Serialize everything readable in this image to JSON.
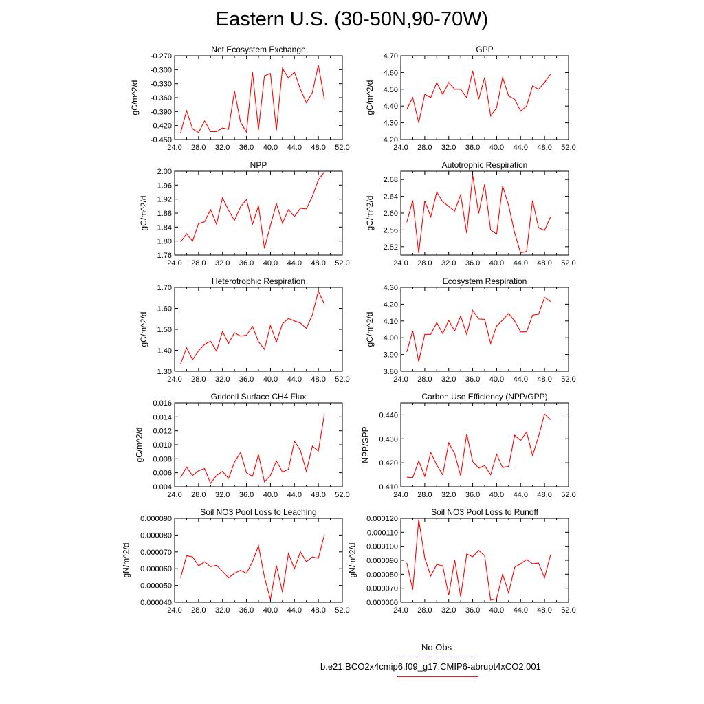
{
  "figure": {
    "title": "Eastern U.S. (30-50N,90-70W)"
  },
  "legend": {
    "entries": [
      {
        "label": "No Obs",
        "style": "dashed",
        "color": "#4a4ad0"
      },
      {
        "label": "b.e21.BCO2x4cmip6.f09_g17.CMIP6-abrupt4xCO2.001",
        "style": "solid",
        "color": "#e02020"
      }
    ]
  },
  "colors": {
    "series": "#ff0000",
    "axis": "#000000"
  },
  "chart_data": [
    {
      "type": "line",
      "title": "Net Ecosystem Exchange",
      "ylabel": "gC/m^2/d",
      "xlim": [
        24,
        52
      ],
      "ylim": [
        -0.45,
        -0.27
      ],
      "xticks": [
        "24.0",
        "28.0",
        "32.0",
        "36.0",
        "40.0",
        "44.0",
        "48.0",
        "52.0"
      ],
      "yticks": [
        "-0.450",
        "-0.420",
        "-0.390",
        "-0.360",
        "-0.330",
        "-0.300",
        "-0.270"
      ],
      "series": [
        {
          "x": [
            25,
            26,
            27,
            28,
            29,
            30,
            31,
            32,
            33,
            34,
            35,
            36,
            37,
            38,
            39,
            40,
            41,
            42,
            43,
            44,
            45,
            46,
            47,
            48,
            49
          ],
          "y": [
            -0.436,
            -0.388,
            -0.427,
            -0.435,
            -0.41,
            -0.433,
            -0.433,
            -0.425,
            -0.428,
            -0.346,
            -0.413,
            -0.434,
            -0.305,
            -0.429,
            -0.313,
            -0.308,
            -0.43,
            -0.297,
            -0.318,
            -0.305,
            -0.342,
            -0.371,
            -0.349,
            -0.29,
            -0.364
          ]
        }
      ]
    },
    {
      "type": "line",
      "title": "GPP",
      "ylabel": "gC/m^2/d",
      "xlim": [
        24,
        52
      ],
      "ylim": [
        4.2,
        4.7
      ],
      "xticks": [
        "24.0",
        "28.0",
        "32.0",
        "36.0",
        "40.0",
        "44.0",
        "48.0",
        "52.0"
      ],
      "yticks": [
        "4.20",
        "4.30",
        "4.40",
        "4.50",
        "4.60",
        "4.70"
      ],
      "series": [
        {
          "x": [
            25,
            26,
            27,
            28,
            29,
            30,
            31,
            32,
            33,
            34,
            35,
            36,
            37,
            38,
            39,
            40,
            41,
            42,
            43,
            44,
            45,
            46,
            47,
            48,
            49
          ],
          "y": [
            4.38,
            4.45,
            4.3,
            4.47,
            4.45,
            4.54,
            4.47,
            4.54,
            4.5,
            4.5,
            4.45,
            4.61,
            4.44,
            4.57,
            4.34,
            4.39,
            4.57,
            4.46,
            4.44,
            4.37,
            4.4,
            4.52,
            4.5,
            4.54,
            4.59
          ]
        }
      ]
    },
    {
      "type": "line",
      "title": "NPP",
      "ylabel": "gC/m^2/d",
      "xlim": [
        24,
        52
      ],
      "ylim": [
        1.76,
        2.0
      ],
      "xticks": [
        "24.0",
        "28.0",
        "32.0",
        "36.0",
        "40.0",
        "44.0",
        "48.0",
        "52.0"
      ],
      "yticks": [
        "1.76",
        "1.80",
        "1.84",
        "1.88",
        "1.92",
        "1.96",
        "2.00"
      ],
      "series": [
        {
          "x": [
            25,
            26,
            27,
            28,
            29,
            30,
            31,
            32,
            33,
            34,
            35,
            36,
            37,
            38,
            39,
            40,
            41,
            42,
            43,
            44,
            45,
            46,
            47,
            48,
            49
          ],
          "y": [
            1.797,
            1.821,
            1.8,
            1.85,
            1.855,
            1.89,
            1.848,
            1.924,
            1.888,
            1.859,
            1.898,
            1.919,
            1.848,
            1.901,
            1.779,
            1.845,
            1.907,
            1.851,
            1.89,
            1.87,
            1.894,
            1.892,
            1.928,
            1.975,
            1.998
          ]
        }
      ]
    },
    {
      "type": "line",
      "title": "Autotrophic Respiration",
      "ylabel": "gC/m^2/d",
      "xlim": [
        24,
        52
      ],
      "ylim": [
        2.5,
        2.7
      ],
      "xticks": [
        "24.0",
        "28.0",
        "32.0",
        "36.0",
        "40.0",
        "44.0",
        "48.0",
        "52.0"
      ],
      "yticks": [
        "2.52",
        "2.56",
        "2.60",
        "2.64",
        "2.68"
      ],
      "series": [
        {
          "x": [
            25,
            26,
            27,
            28,
            29,
            30,
            31,
            32,
            33,
            34,
            35,
            36,
            37,
            38,
            39,
            40,
            41,
            42,
            43,
            44,
            45,
            46,
            47,
            48,
            49
          ],
          "y": [
            2.578,
            2.63,
            2.505,
            2.629,
            2.591,
            2.65,
            2.627,
            2.616,
            2.605,
            2.644,
            2.552,
            2.69,
            2.599,
            2.669,
            2.56,
            2.55,
            2.665,
            2.618,
            2.553,
            2.505,
            2.509,
            2.63,
            2.565,
            2.559,
            2.591
          ]
        }
      ]
    },
    {
      "type": "line",
      "title": "Heterotrophic Respiration",
      "ylabel": "gC/m^2/d",
      "xlim": [
        24,
        52
      ],
      "ylim": [
        1.3,
        1.7
      ],
      "xticks": [
        "24.0",
        "28.0",
        "32.0",
        "36.0",
        "40.0",
        "44.0",
        "48.0",
        "52.0"
      ],
      "yticks": [
        "1.30",
        "1.40",
        "1.50",
        "1.60",
        "1.70"
      ],
      "series": [
        {
          "x": [
            25,
            26,
            27,
            28,
            29,
            30,
            31,
            32,
            33,
            34,
            35,
            36,
            37,
            38,
            39,
            40,
            41,
            42,
            43,
            44,
            45,
            46,
            47,
            48,
            49
          ],
          "y": [
            1.335,
            1.412,
            1.355,
            1.398,
            1.428,
            1.444,
            1.396,
            1.49,
            1.433,
            1.484,
            1.468,
            1.472,
            1.514,
            1.441,
            1.405,
            1.519,
            1.44,
            1.526,
            1.552,
            1.54,
            1.53,
            1.505,
            1.57,
            1.682,
            1.62
          ]
        }
      ]
    },
    {
      "type": "line",
      "title": "Ecosystem Respiration",
      "ylabel": "gC/m^2/d",
      "xlim": [
        24,
        52
      ],
      "ylim": [
        3.8,
        4.3
      ],
      "xticks": [
        "24.0",
        "28.0",
        "32.0",
        "36.0",
        "40.0",
        "44.0",
        "48.0",
        "52.0"
      ],
      "yticks": [
        "3.80",
        "3.90",
        "4.00",
        "4.10",
        "4.20",
        "4.30"
      ],
      "series": [
        {
          "x": [
            25,
            26,
            27,
            28,
            29,
            30,
            31,
            32,
            33,
            34,
            35,
            36,
            37,
            38,
            39,
            40,
            41,
            42,
            43,
            44,
            45,
            46,
            47,
            48,
            49
          ],
          "y": [
            3.915,
            4.042,
            3.858,
            4.02,
            4.02,
            4.09,
            4.025,
            4.103,
            4.04,
            4.13,
            4.02,
            4.163,
            4.112,
            4.11,
            3.965,
            4.07,
            4.105,
            4.145,
            4.1,
            4.035,
            4.035,
            4.135,
            4.14,
            4.24,
            4.215
          ]
        }
      ]
    },
    {
      "type": "line",
      "title": "Gridcell Surface CH4 Flux",
      "ylabel": "gC/m^2/d",
      "xlim": [
        24,
        52
      ],
      "ylim": [
        0.004,
        0.016
      ],
      "xticks": [
        "24.0",
        "28.0",
        "32.0",
        "36.0",
        "40.0",
        "44.0",
        "48.0",
        "52.0"
      ],
      "yticks": [
        "0.004",
        "0.006",
        "0.008",
        "0.010",
        "0.012",
        "0.014",
        "0.016"
      ],
      "series": [
        {
          "x": [
            25,
            26,
            27,
            28,
            29,
            30,
            31,
            32,
            33,
            34,
            35,
            36,
            37,
            38,
            39,
            40,
            41,
            42,
            43,
            44,
            45,
            46,
            47,
            48,
            49
          ],
          "y": [
            0.0053,
            0.0068,
            0.0056,
            0.0063,
            0.0066,
            0.0045,
            0.0056,
            0.0062,
            0.0052,
            0.0075,
            0.0089,
            0.006,
            0.0055,
            0.0086,
            0.0047,
            0.0056,
            0.0077,
            0.0061,
            0.0065,
            0.0105,
            0.0092,
            0.0062,
            0.0098,
            0.0091,
            0.0144
          ]
        }
      ]
    },
    {
      "type": "line",
      "title": "Carbon Use Efficiency (NPP/GPP)",
      "ylabel": "NPP/GPP",
      "xlim": [
        24,
        52
      ],
      "ylim": [
        0.41,
        0.445
      ],
      "xticks": [
        "24.0",
        "28.0",
        "32.0",
        "36.0",
        "40.0",
        "44.0",
        "48.0",
        "52.0"
      ],
      "yticks": [
        "0.410",
        "0.420",
        "0.430",
        "0.440"
      ],
      "series": [
        {
          "x": [
            25,
            26,
            27,
            28,
            29,
            30,
            31,
            32,
            33,
            34,
            35,
            36,
            37,
            38,
            39,
            40,
            41,
            42,
            43,
            44,
            45,
            46,
            47,
            48,
            49
          ],
          "y": [
            0.414,
            0.4138,
            0.4208,
            0.4143,
            0.4243,
            0.419,
            0.415,
            0.4283,
            0.4238,
            0.4145,
            0.432,
            0.4205,
            0.4178,
            0.4188,
            0.415,
            0.4235,
            0.418,
            0.4185,
            0.4315,
            0.4293,
            0.4328,
            0.423,
            0.431,
            0.4403,
            0.438
          ]
        }
      ]
    },
    {
      "type": "line",
      "title": "Soil NO3 Pool Loss to Leaching",
      "ylabel": "gN/m^2/d",
      "xlim": [
        24,
        52
      ],
      "ylim": [
        4e-05,
        9e-05
      ],
      "xticks": [
        "24.0",
        "28.0",
        "32.0",
        "36.0",
        "40.0",
        "44.0",
        "48.0",
        "52.0"
      ],
      "yticks": [
        "0.000040",
        "0.000050",
        "0.000060",
        "0.000070",
        "0.000080",
        "0.000090"
      ],
      "series": [
        {
          "x": [
            25,
            26,
            27,
            28,
            29,
            30,
            31,
            32,
            33,
            34,
            35,
            36,
            37,
            38,
            39,
            40,
            41,
            42,
            43,
            44,
            45,
            46,
            47,
            48,
            49
          ],
          "y": [
            5.45e-05,
            6.77e-05,
            6.7e-05,
            6.17e-05,
            6.41e-05,
            6.12e-05,
            6.2e-05,
            5.85e-05,
            5.45e-05,
            5.73e-05,
            5.9e-05,
            5.73e-05,
            6.42e-05,
            7.37e-05,
            5.5e-05,
            4.16e-05,
            6.19e-05,
            4.6e-05,
            6.9e-05,
            6e-05,
            7e-05,
            6.42e-05,
            6.7e-05,
            6.62e-05,
            8.03e-05
          ]
        }
      ]
    },
    {
      "type": "line",
      "title": "Soil NO3 Pool Loss to Runoff",
      "ylabel": "gN/m^2/d",
      "xlim": [
        24,
        52
      ],
      "ylim": [
        6e-05,
        0.00012
      ],
      "xticks": [
        "24.0",
        "28.0",
        "32.0",
        "36.0",
        "40.0",
        "44.0",
        "48.0",
        "52.0"
      ],
      "yticks": [
        "0.000060",
        "0.000070",
        "0.000080",
        "0.000090",
        "0.000100",
        "0.000110",
        "0.000120"
      ],
      "series": [
        {
          "x": [
            25,
            26,
            27,
            28,
            29,
            30,
            31,
            32,
            33,
            34,
            35,
            36,
            37,
            38,
            39,
            40,
            41,
            42,
            43,
            44,
            45,
            46,
            47,
            48,
            49
          ],
          "y": [
            8.82e-05,
            6.9e-05,
            0.0001192,
            9.15e-05,
            7.88e-05,
            8.7e-05,
            8.6e-05,
            6.5e-05,
            9.02e-05,
            6.4e-05,
            9.45e-05,
            9.25e-05,
            9.7e-05,
            9.32e-05,
            6.15e-05,
            6.25e-05,
            8e-05,
            6.68e-05,
            8.5e-05,
            8.75e-05,
            9.05e-05,
            8.75e-05,
            8.8e-05,
            7.75e-05,
            9.4e-05
          ]
        }
      ]
    }
  ]
}
